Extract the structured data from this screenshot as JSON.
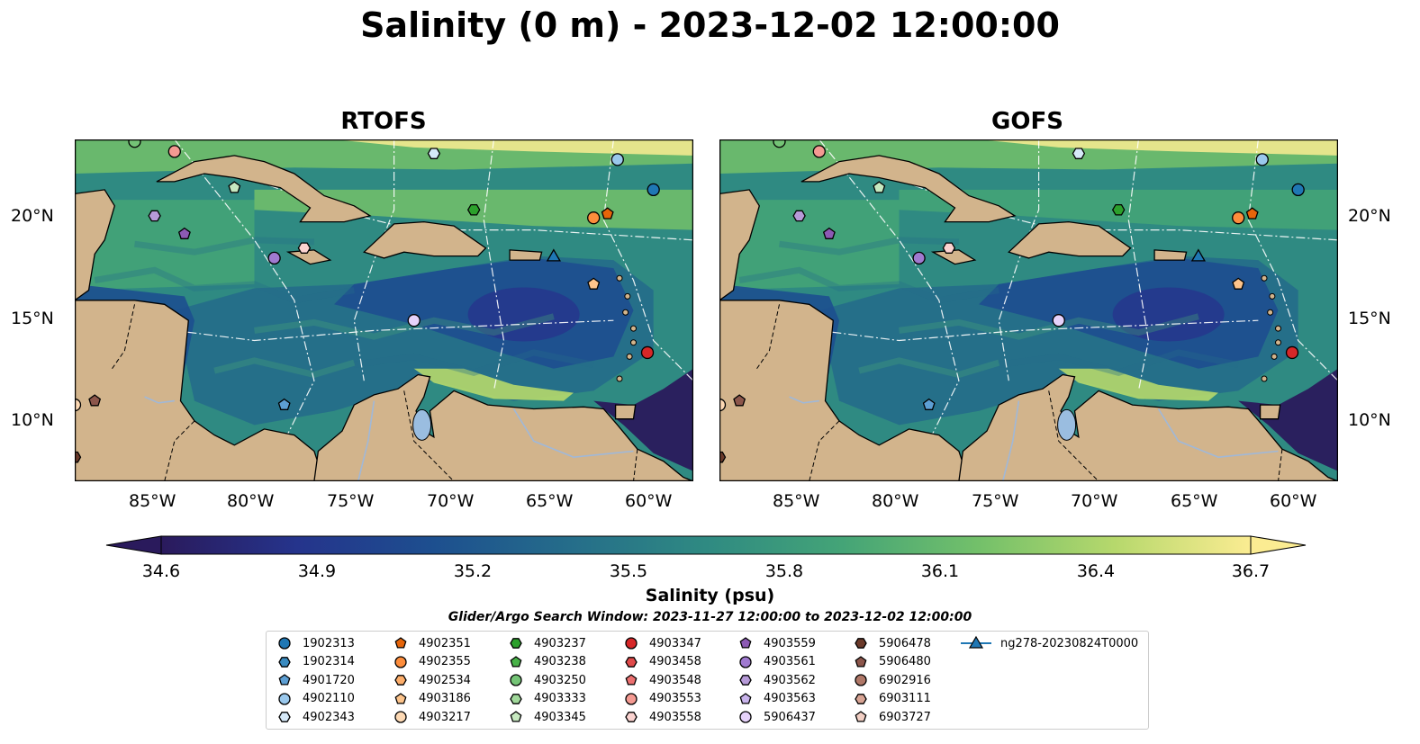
{
  "title": "Salinity (0 m) - 2023-12-02 12:00:00",
  "panels": [
    {
      "title": "RTOFS"
    },
    {
      "title": "GOFS"
    }
  ],
  "map_extent": {
    "lon": [
      -89,
      -58
    ],
    "lat": [
      7,
      24
    ]
  },
  "lat_ticks": [
    "20°N",
    "15°N",
    "10°N"
  ],
  "lon_ticks": [
    "85°W",
    "80°W",
    "75°W",
    "70°W",
    "65°W",
    "60°W"
  ],
  "colorbar": {
    "label": "Salinity (psu)",
    "ticks": [
      "34.6",
      "34.9",
      "35.2",
      "35.5",
      "35.8",
      "36.1",
      "36.4",
      "36.7"
    ],
    "range": [
      34.6,
      36.7
    ],
    "colormap": [
      "#2a1a5c",
      "#25348c",
      "#1d4f8f",
      "#256d8a",
      "#2f8a82",
      "#44a477",
      "#73c06a",
      "#b6d86c",
      "#fbec92"
    ]
  },
  "search_window": "Glider/Argo Search Window: 2023-11-27 12:00:00 to 2023-12-02 12:00:00",
  "colors": {
    "land": "#d2b48c",
    "rivers": "#a0b8d8",
    "coast": "#000000"
  },
  "legend": [
    {
      "label": "1902313",
      "marker": "circle",
      "color": "#1f77b4"
    },
    {
      "label": "1902314",
      "marker": "hexagon",
      "color": "#3a8bc0"
    },
    {
      "label": "4901720",
      "marker": "pentagon",
      "color": "#5d9fd4"
    },
    {
      "label": "4902110",
      "marker": "circle",
      "color": "#9ac8ec"
    },
    {
      "label": "4902343",
      "marker": "hexagon",
      "color": "#d6e9f8"
    },
    {
      "label": "4902351",
      "marker": "pentagon",
      "color": "#e6650a"
    },
    {
      "label": "4902355",
      "marker": "circle",
      "color": "#fd8d3c"
    },
    {
      "label": "4902534",
      "marker": "hexagon",
      "color": "#fdae6b"
    },
    {
      "label": "4903186",
      "marker": "pentagon",
      "color": "#fdc48b"
    },
    {
      "label": "4903217",
      "marker": "circle",
      "color": "#fdd9b4"
    },
    {
      "label": "4903237",
      "marker": "hexagon",
      "color": "#2ca02c"
    },
    {
      "label": "4903238",
      "marker": "pentagon",
      "color": "#48b248"
    },
    {
      "label": "4903250",
      "marker": "circle",
      "color": "#74c476"
    },
    {
      "label": "4903333",
      "marker": "hexagon",
      "color": "#a1d99b"
    },
    {
      "label": "4903345",
      "marker": "pentagon",
      "color": "#c7e9c0"
    },
    {
      "label": "4903347",
      "marker": "circle",
      "color": "#d62728"
    },
    {
      "label": "4903458",
      "marker": "hexagon",
      "color": "#e04a4a"
    },
    {
      "label": "4903548",
      "marker": "pentagon",
      "color": "#ec7070"
    },
    {
      "label": "4903553",
      "marker": "circle",
      "color": "#f49a92"
    },
    {
      "label": "4903558",
      "marker": "hexagon",
      "color": "#fbd3d0"
    },
    {
      "label": "4903559",
      "marker": "pentagon",
      "color": "#8c5ab4"
    },
    {
      "label": "4903561",
      "marker": "circle",
      "color": "#a07ad0"
    },
    {
      "label": "4903562",
      "marker": "hexagon",
      "color": "#b69ad8"
    },
    {
      "label": "4903563",
      "marker": "pentagon",
      "color": "#c9b4ec"
    },
    {
      "label": "5906437",
      "marker": "circle",
      "color": "#e6d2fa"
    },
    {
      "label": "5906478",
      "marker": "hexagon",
      "color": "#6b3a2a"
    },
    {
      "label": "5906480",
      "marker": "pentagon",
      "color": "#8c564b"
    },
    {
      "label": "6902916",
      "marker": "circle",
      "color": "#b07868"
    },
    {
      "label": "6903111",
      "marker": "hexagon",
      "color": "#d8a494"
    },
    {
      "label": "6903727",
      "marker": "pentagon",
      "color": "#f2cfc4"
    },
    {
      "label": "ng278-20230824T0000",
      "marker": "triangle-line",
      "color": "#1f77b4"
    }
  ],
  "platforms": [
    {
      "id": "1902313",
      "lon": -60.0,
      "lat": 21.5
    },
    {
      "id": "4902110",
      "lon": -61.8,
      "lat": 23.0
    },
    {
      "id": "4902343",
      "lon": -71.0,
      "lat": 23.3
    },
    {
      "id": "4902351",
      "lon": -62.3,
      "lat": 20.3
    },
    {
      "id": "4902355",
      "lon": -63.0,
      "lat": 20.1
    },
    {
      "id": "4903237",
      "lon": -69.0,
      "lat": 20.5
    },
    {
      "id": "4903345",
      "lon": -81.0,
      "lat": 21.6
    },
    {
      "id": "4903553",
      "lon": -84.0,
      "lat": 23.4
    },
    {
      "id": "4903558",
      "lon": -77.5,
      "lat": 18.6
    },
    {
      "id": "4903559",
      "lon": -83.5,
      "lat": 19.3
    },
    {
      "id": "4903561",
      "lon": -79.0,
      "lat": 18.1
    },
    {
      "id": "4903562",
      "lon": -85.0,
      "lat": 20.2
    },
    {
      "id": "4903186",
      "lon": -63.0,
      "lat": 16.8
    },
    {
      "id": "5906437",
      "lon": -72.0,
      "lat": 15.0
    },
    {
      "id": "4901720",
      "lon": -78.5,
      "lat": 10.8
    },
    {
      "id": "4903347",
      "lon": -60.3,
      "lat": 13.4
    },
    {
      "id": "5906480",
      "lon": -88.0,
      "lat": 11.0
    },
    {
      "id": "5906478",
      "lon": -89.0,
      "lat": 8.2
    },
    {
      "id": "4903250",
      "lon": -86.0,
      "lat": 23.9
    },
    {
      "id": "4903217",
      "lon": -89.0,
      "lat": 10.8
    },
    {
      "id": "ng278-20230824T0000",
      "lon": -65.0,
      "lat": 18.2
    }
  ]
}
